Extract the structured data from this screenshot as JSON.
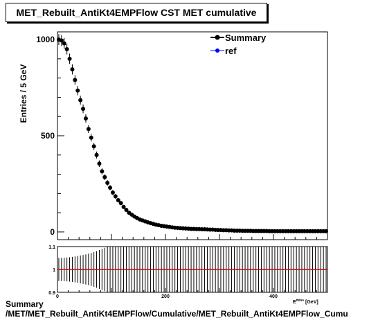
{
  "title": "MET_Rebuilt_AntiKt4EMPFlow CST MET cumulative",
  "footer": {
    "line1": "Summary",
    "line2": "/MET/MET_Rebuilt_AntiKt4EMPFlow/Cumulative/MET_Rebuilt_AntiKt4EMPFlow_Cumu"
  },
  "colors": {
    "summary": "#000000",
    "ref": "#0000ff",
    "ratio_line": "#cc0000"
  },
  "chart_data": [
    {
      "type": "scatter",
      "title": "MET_Rebuilt_AntiKt4EMPFlow CST MET cumulative",
      "ylabel": "Entries / 5 GeV",
      "xlabel": "",
      "xlim": [
        0,
        500
      ],
      "ylim": [
        -40,
        1040
      ],
      "yticks": [
        0,
        500,
        1000
      ],
      "xticks": [
        0,
        200,
        400
      ],
      "grid": false,
      "legend_position": "top-right",
      "legend": [
        "Summary",
        "ref"
      ],
      "bin_width": 5,
      "series": [
        {
          "name": "Summary",
          "x_start": 2.5,
          "values": [
            1000,
            995,
            980,
            950,
            900,
            845,
            790,
            735,
            685,
            640,
            590,
            535,
            490,
            445,
            400,
            355,
            315,
            285,
            255,
            230,
            205,
            185,
            165,
            150,
            130,
            115,
            100,
            90,
            80,
            72,
            65,
            60,
            55,
            50,
            46,
            42,
            38,
            35,
            32,
            30,
            28,
            26,
            24,
            22,
            21,
            20,
            19,
            18,
            17,
            16,
            16,
            15,
            15,
            14,
            14,
            13,
            12,
            12,
            11,
            10,
            10,
            9,
            9,
            8,
            8,
            7,
            7,
            7,
            6,
            6,
            6,
            6,
            5,
            5,
            5,
            5,
            5,
            5,
            4,
            4,
            4,
            4,
            4,
            4,
            4,
            4,
            4,
            4,
            4,
            4,
            4,
            4,
            4,
            4,
            4,
            4,
            4,
            4,
            4,
            4
          ]
        },
        {
          "name": "ref",
          "values": []
        }
      ]
    },
    {
      "type": "scatter",
      "xlim": [
        0,
        500
      ],
      "ylim": [
        0.9,
        1.1
      ],
      "yticks": [
        0.9,
        1,
        1.1
      ],
      "xticks": [
        0,
        200,
        400
      ],
      "xlabel_partial": "E_T^miss [GeV]",
      "ratio_value": 1.0
    }
  ],
  "axis_labels": {
    "main_yticks": [
      "0",
      "500",
      "1000"
    ],
    "ratio_yticks": [
      "0.9",
      "1",
      "1.1"
    ],
    "ratio_xticks": [
      "0",
      "200",
      "400"
    ]
  }
}
